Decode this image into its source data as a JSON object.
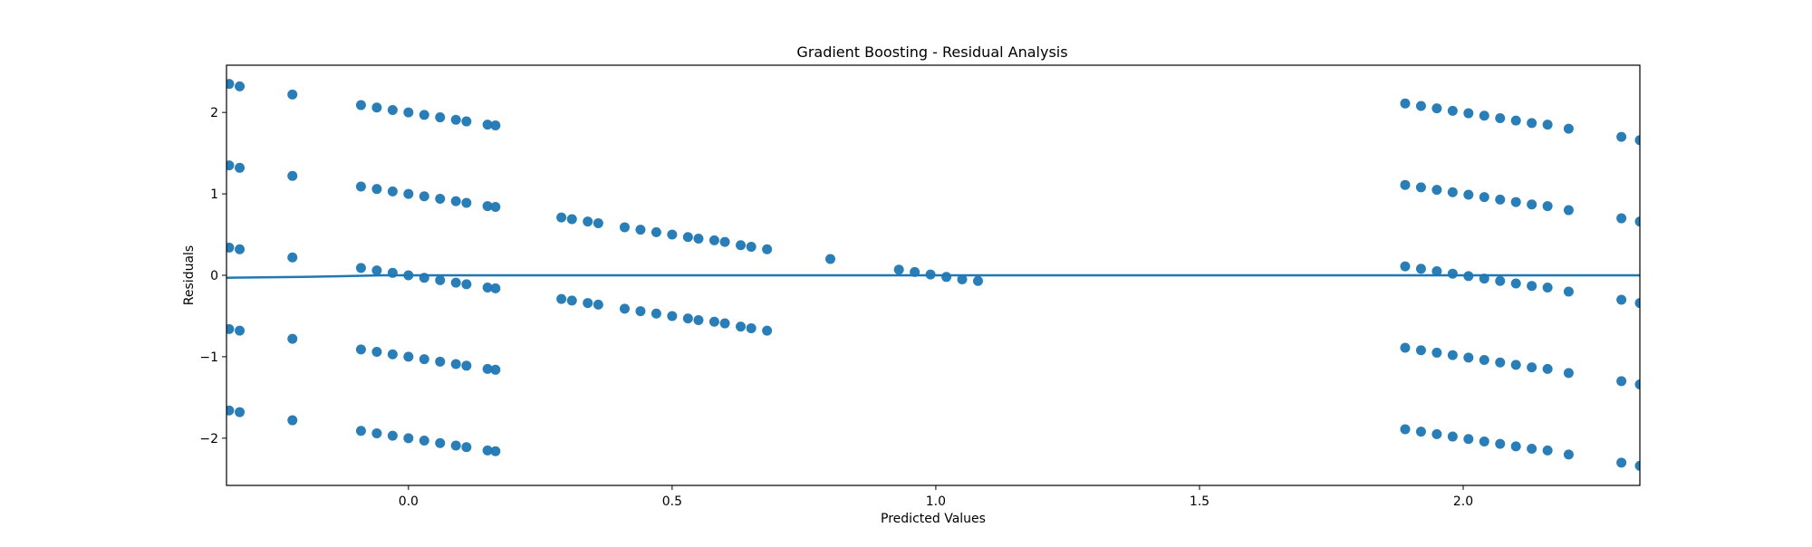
{
  "chart_data": {
    "type": "scatter",
    "title": "Gradient Boosting - Residual Analysis",
    "xlabel": "Predicted Values",
    "ylabel": "Residuals",
    "xlim": [
      -0.345,
      2.335
    ],
    "ylim": [
      -2.58,
      2.58
    ],
    "xticks": [
      0.0,
      0.5,
      1.0,
      1.5,
      2.0
    ],
    "xtick_labels": [
      "0.0",
      "0.5",
      "1.0",
      "1.5",
      "2.0"
    ],
    "yticks": [
      -2,
      -1,
      0,
      1,
      2
    ],
    "ytick_labels": [
      "−2",
      "−1",
      "0",
      "1",
      "2"
    ],
    "grid": false,
    "legend": "none",
    "colors": {
      "points": "#1f77b4",
      "line": "#1f77b4"
    },
    "series": [
      {
        "points": [
          [
            -0.34,
            2.35
          ],
          [
            -0.32,
            2.32
          ],
          [
            -0.34,
            1.35
          ],
          [
            -0.32,
            1.32
          ],
          [
            -0.34,
            0.34
          ],
          [
            -0.32,
            0.32
          ],
          [
            -0.34,
            -0.66
          ],
          [
            -0.32,
            -0.68
          ],
          [
            -0.34,
            -1.66
          ],
          [
            -0.32,
            -1.68
          ],
          [
            -0.22,
            2.22
          ],
          [
            -0.22,
            1.22
          ],
          [
            -0.22,
            0.22
          ],
          [
            -0.22,
            -0.78
          ],
          [
            -0.22,
            -1.78
          ],
          [
            -0.09,
            2.09
          ],
          [
            -0.06,
            2.06
          ],
          [
            -0.03,
            2.03
          ],
          [
            0.0,
            2.0
          ],
          [
            0.03,
            1.97
          ],
          [
            0.06,
            1.94
          ],
          [
            0.09,
            1.91
          ],
          [
            0.11,
            1.89
          ],
          [
            0.15,
            1.85
          ],
          [
            0.165,
            1.84
          ],
          [
            -0.09,
            1.09
          ],
          [
            -0.06,
            1.06
          ],
          [
            -0.03,
            1.03
          ],
          [
            0.0,
            1.0
          ],
          [
            0.03,
            0.97
          ],
          [
            0.06,
            0.94
          ],
          [
            0.09,
            0.91
          ],
          [
            0.11,
            0.89
          ],
          [
            0.15,
            0.85
          ],
          [
            0.165,
            0.84
          ],
          [
            -0.09,
            0.09
          ],
          [
            -0.06,
            0.06
          ],
          [
            -0.03,
            0.03
          ],
          [
            0.0,
            0.0
          ],
          [
            0.03,
            -0.03
          ],
          [
            0.06,
            -0.06
          ],
          [
            0.09,
            -0.09
          ],
          [
            0.11,
            -0.11
          ],
          [
            0.15,
            -0.15
          ],
          [
            0.165,
            -0.16
          ],
          [
            -0.09,
            -0.91
          ],
          [
            -0.06,
            -0.94
          ],
          [
            -0.03,
            -0.97
          ],
          [
            0.0,
            -1.0
          ],
          [
            0.03,
            -1.03
          ],
          [
            0.06,
            -1.06
          ],
          [
            0.09,
            -1.09
          ],
          [
            0.11,
            -1.11
          ],
          [
            0.15,
            -1.15
          ],
          [
            0.165,
            -1.16
          ],
          [
            -0.09,
            -1.91
          ],
          [
            -0.06,
            -1.94
          ],
          [
            -0.03,
            -1.97
          ],
          [
            0.0,
            -2.0
          ],
          [
            0.03,
            -2.03
          ],
          [
            0.06,
            -2.06
          ],
          [
            0.09,
            -2.09
          ],
          [
            0.11,
            -2.11
          ],
          [
            0.15,
            -2.15
          ],
          [
            0.165,
            -2.16
          ],
          [
            0.29,
            0.71
          ],
          [
            0.31,
            0.69
          ],
          [
            0.34,
            0.66
          ],
          [
            0.36,
            0.64
          ],
          [
            0.41,
            0.59
          ],
          [
            0.44,
            0.56
          ],
          [
            0.47,
            0.53
          ],
          [
            0.5,
            0.5
          ],
          [
            0.53,
            0.47
          ],
          [
            0.55,
            0.45
          ],
          [
            0.58,
            0.43
          ],
          [
            0.6,
            0.41
          ],
          [
            0.63,
            0.37
          ],
          [
            0.65,
            0.35
          ],
          [
            0.68,
            0.32
          ],
          [
            0.29,
            -0.29
          ],
          [
            0.31,
            -0.31
          ],
          [
            0.34,
            -0.34
          ],
          [
            0.36,
            -0.36
          ],
          [
            0.41,
            -0.41
          ],
          [
            0.44,
            -0.44
          ],
          [
            0.47,
            -0.47
          ],
          [
            0.5,
            -0.5
          ],
          [
            0.53,
            -0.53
          ],
          [
            0.55,
            -0.55
          ],
          [
            0.58,
            -0.57
          ],
          [
            0.6,
            -0.59
          ],
          [
            0.63,
            -0.63
          ],
          [
            0.65,
            -0.65
          ],
          [
            0.68,
            -0.68
          ],
          [
            0.8,
            0.2
          ],
          [
            0.93,
            0.07
          ],
          [
            0.96,
            0.04
          ],
          [
            0.99,
            0.01
          ],
          [
            1.02,
            -0.02
          ],
          [
            1.05,
            -0.05
          ],
          [
            1.08,
            -0.07
          ],
          [
            1.89,
            2.11
          ],
          [
            1.92,
            2.08
          ],
          [
            1.95,
            2.05
          ],
          [
            1.98,
            2.02
          ],
          [
            2.01,
            1.99
          ],
          [
            2.04,
            1.96
          ],
          [
            2.07,
            1.93
          ],
          [
            2.1,
            1.9
          ],
          [
            2.13,
            1.87
          ],
          [
            2.16,
            1.85
          ],
          [
            2.2,
            1.8
          ],
          [
            2.3,
            1.7
          ],
          [
            2.335,
            1.66
          ],
          [
            1.89,
            1.11
          ],
          [
            1.92,
            1.08
          ],
          [
            1.95,
            1.05
          ],
          [
            1.98,
            1.02
          ],
          [
            2.01,
            0.99
          ],
          [
            2.04,
            0.96
          ],
          [
            2.07,
            0.93
          ],
          [
            2.1,
            0.9
          ],
          [
            2.13,
            0.87
          ],
          [
            2.16,
            0.85
          ],
          [
            2.2,
            0.8
          ],
          [
            2.3,
            0.7
          ],
          [
            2.335,
            0.66
          ],
          [
            1.89,
            0.11
          ],
          [
            1.92,
            0.08
          ],
          [
            1.95,
            0.05
          ],
          [
            1.98,
            0.02
          ],
          [
            2.01,
            -0.01
          ],
          [
            2.04,
            -0.04
          ],
          [
            2.07,
            -0.07
          ],
          [
            2.1,
            -0.1
          ],
          [
            2.13,
            -0.13
          ],
          [
            2.16,
            -0.15
          ],
          [
            2.2,
            -0.2
          ],
          [
            2.3,
            -0.3
          ],
          [
            2.335,
            -0.34
          ],
          [
            1.89,
            -0.89
          ],
          [
            1.92,
            -0.92
          ],
          [
            1.95,
            -0.95
          ],
          [
            1.98,
            -0.98
          ],
          [
            2.01,
            -1.01
          ],
          [
            2.04,
            -1.04
          ],
          [
            2.07,
            -1.07
          ],
          [
            2.1,
            -1.1
          ],
          [
            2.13,
            -1.13
          ],
          [
            2.16,
            -1.15
          ],
          [
            2.2,
            -1.2
          ],
          [
            2.3,
            -1.3
          ],
          [
            2.335,
            -1.34
          ],
          [
            1.89,
            -1.89
          ],
          [
            1.92,
            -1.92
          ],
          [
            1.95,
            -1.95
          ],
          [
            1.98,
            -1.98
          ],
          [
            2.01,
            -2.01
          ],
          [
            2.04,
            -2.04
          ],
          [
            2.07,
            -2.07
          ],
          [
            2.1,
            -2.1
          ],
          [
            2.13,
            -2.13
          ],
          [
            2.16,
            -2.15
          ],
          [
            2.2,
            -2.2
          ],
          [
            2.3,
            -2.3
          ],
          [
            2.335,
            -2.34
          ]
        ]
      }
    ],
    "trend_line": [
      [
        -0.345,
        -0.03
      ],
      [
        -0.2,
        -0.02
      ],
      [
        -0.05,
        0.0
      ],
      [
        0.1,
        0.0
      ],
      [
        0.4,
        0.0
      ],
      [
        1.0,
        0.0
      ],
      [
        2.335,
        0.0
      ]
    ]
  }
}
